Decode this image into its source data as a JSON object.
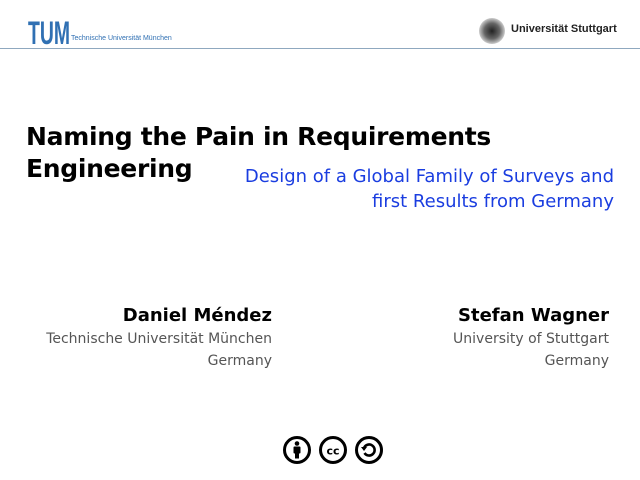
{
  "header": {
    "left_institution": "Technische Universität München",
    "left_logo_text": "TUM",
    "right_institution": "Universität Stuttgart",
    "accent_color": "#3070b3"
  },
  "slide": {
    "title_line1": "Naming the Pain in Requirements",
    "title_line2": "Engineering",
    "subtitle_line1": "Design of a Global Family of Surveys and",
    "subtitle_line2": "first Results from Germany",
    "subtitle_color": "#1a3de0"
  },
  "authors": [
    {
      "name": "Daniel Méndez",
      "affiliation": "Technische Universität München",
      "country": "Germany"
    },
    {
      "name": "Stefan Wagner",
      "affiliation": "University of Stuttgart",
      "country": "Germany"
    }
  ],
  "license_icons": [
    "attribution-icon",
    "creative-commons-icon",
    "share-alike-icon"
  ]
}
